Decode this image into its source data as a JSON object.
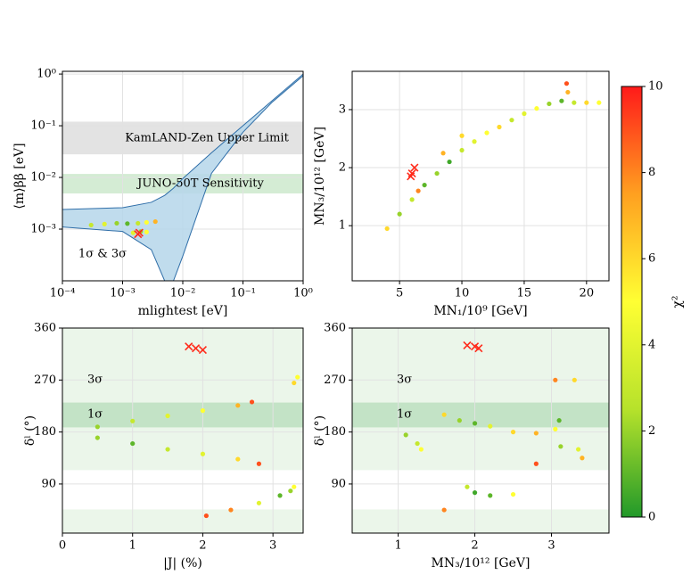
{
  "chart_data": [
    {
      "type": "scatter",
      "xlabel": "mlightest [eV]",
      "ylabel": "⟨m⟩ββ [eV]",
      "xlog": true,
      "ylog": true,
      "grid": true,
      "xlim": [
        0.0001,
        1
      ],
      "ylim": [
        0.0001,
        1.13
      ],
      "xticks": [
        {
          "value": 0.0001,
          "label": "10⁻⁴"
        },
        {
          "value": 0.001,
          "label": "10⁻³"
        },
        {
          "value": 0.01,
          "label": "10⁻²"
        },
        {
          "value": 0.1,
          "label": "10⁻¹"
        },
        {
          "value": 1,
          "label": "10⁰"
        }
      ],
      "yticks": [
        {
          "value": 0.001,
          "label": "10⁻³"
        },
        {
          "value": 0.01,
          "label": "10⁻²"
        },
        {
          "value": 0.1,
          "label": "10⁻¹"
        },
        {
          "value": 1,
          "label": "10⁰"
        }
      ],
      "bands": [
        {
          "label": "KamLAND-Zen Upper Limit",
          "ranges": [
            [
              0.028,
              0.12
            ]
          ],
          "color": "#e3e3e3",
          "text_color": "#6e6e6e"
        },
        {
          "label": "JUNO-50T Sensitivity",
          "ranges": [
            [
              0.0049,
              0.0117
            ]
          ],
          "color": "#d4ecd4",
          "text_color": "#3a9a4a"
        }
      ],
      "region": {
        "x": [
          0.0001,
          0.001,
          0.003,
          0.005,
          0.007,
          0.01,
          0.03,
          0.1,
          0.3,
          1
        ],
        "upper": [
          0.0024,
          0.0026,
          0.0033,
          0.0045,
          0.0062,
          0.0095,
          0.03,
          0.1,
          0.3,
          1
        ],
        "lower": [
          0.0011,
          0.0009,
          0.0004,
          0.0001,
          0.0001,
          0.0003,
          0.012,
          0.075,
          0.28,
          0.93
        ],
        "fill": "#b5d6ea",
        "stroke": "#2f6ea8"
      },
      "annotations": [
        "1σ & 3σ"
      ],
      "series": [
        {
          "marker": "o",
          "x": [
            0.0003,
            0.0005,
            0.0008,
            0.0012,
            0.0018,
            0.0025,
            0.0035,
            0.0015,
            0.002,
            0.0025
          ],
          "y": [
            0.0012,
            0.00125,
            0.0013,
            0.00128,
            0.0013,
            0.00135,
            0.0014,
            0.00085,
            0.0009,
            0.00088
          ],
          "c": [
            3,
            4,
            2,
            1,
            3,
            5,
            7,
            4,
            2,
            5
          ]
        },
        {
          "marker": "x",
          "color": "#ff2a1a",
          "x": [
            0.0018,
            0.0019
          ],
          "y": [
            0.0008,
            0.00085
          ]
        }
      ]
    },
    {
      "type": "scatter",
      "xlabel": "MN₁/10⁹ [GeV]",
      "ylabel": "MN₃/10¹² [GeV]",
      "grid": true,
      "xlim": [
        1.2,
        21.8
      ],
      "ylim": [
        0.05,
        3.66
      ],
      "xticks": [
        5,
        10,
        15,
        20
      ],
      "yticks": [
        1,
        2,
        3
      ],
      "series": [
        {
          "marker": "o",
          "x": [
            4,
            5,
            6,
            7,
            8,
            9,
            10,
            11,
            12,
            13,
            14,
            15,
            16,
            17,
            18,
            18.5,
            18.4,
            19,
            20,
            21,
            6.5,
            8.5,
            10
          ],
          "y": [
            0.95,
            1.2,
            1.45,
            1.7,
            1.9,
            2.1,
            2.3,
            2.45,
            2.6,
            2.7,
            2.82,
            2.93,
            3.02,
            3.1,
            3.15,
            3.3,
            3.45,
            3.12,
            3.12,
            3.12,
            1.6,
            2.25,
            2.55
          ],
          "c": [
            6,
            2,
            3,
            1,
            2,
            0.5,
            3,
            4,
            5,
            6,
            3,
            4,
            5,
            2,
            1,
            7,
            9,
            3,
            6,
            5,
            8,
            7,
            6
          ]
        },
        {
          "marker": "x",
          "color": "#ff2a1a",
          "x": [
            6,
            6.2,
            5.9
          ],
          "y": [
            1.9,
            2.0,
            1.85
          ]
        }
      ]
    },
    {
      "type": "scatter",
      "xlabel": "|J| (%)",
      "ylabel": "δˡ (°)",
      "grid": true,
      "xlim": [
        0,
        3.43
      ],
      "ylim": [
        5,
        360
      ],
      "xticks": [
        0,
        1,
        2,
        3
      ],
      "yticks": [
        90,
        180,
        270,
        360
      ],
      "bands": [
        {
          "label": "3σ",
          "ranges": [
            [
              114,
              360
            ],
            [
              0,
              46
            ]
          ],
          "color": "#ebf6ea",
          "text_color": "#1f6b4a"
        },
        {
          "label": "1σ",
          "ranges": [
            [
              188,
              231
            ]
          ],
          "color": "#c3e3c6",
          "text_color": "#1f6b4a"
        }
      ],
      "series": [
        {
          "marker": "o",
          "x": [
            0.5,
            1,
            1.5,
            2,
            2.5,
            2.7,
            0.5,
            1,
            1.5,
            2,
            2.5,
            2.8,
            3.3,
            3.35,
            2.05,
            2.4,
            2.8,
            3.1,
            3.25,
            3.3
          ],
          "y": [
            189,
            199,
            208,
            217,
            226,
            232,
            170,
            160,
            150,
            142,
            133,
            125,
            265,
            275,
            35,
            45,
            57,
            70,
            78,
            85
          ],
          "c": [
            2,
            3,
            4,
            5,
            7,
            9,
            2,
            1,
            3,
            4,
            6,
            9,
            6,
            5,
            9,
            8,
            4,
            1,
            2,
            5
          ]
        },
        {
          "marker": "x",
          "color": "#ff2a1a",
          "x": [
            1.8,
            1.9,
            2.0
          ],
          "y": [
            328,
            325,
            322
          ]
        }
      ]
    },
    {
      "type": "scatter",
      "xlabel": "MN₃/10¹² [GeV]",
      "ylabel": "δˡ (°)",
      "grid": true,
      "xlim": [
        0.4,
        3.75
      ],
      "ylim": [
        5,
        360
      ],
      "xticks": [
        1,
        2,
        3
      ],
      "yticks": [
        90,
        180,
        270,
        360
      ],
      "bands": [
        {
          "label": "3σ",
          "ranges": [
            [
              114,
              360
            ],
            [
              0,
              46
            ]
          ],
          "color": "#ebf6ea",
          "text_color": "#1f6b4a"
        },
        {
          "label": "1σ",
          "ranges": [
            [
              188,
              231
            ]
          ],
          "color": "#c3e3c6",
          "text_color": "#1f6b4a"
        }
      ],
      "series": [
        {
          "marker": "o",
          "x": [
            1.25,
            1.1,
            1.3,
            1.6,
            1.8,
            2,
            2.2,
            2.5,
            2.8,
            3.05,
            3.1,
            3.12,
            3.35,
            3.4,
            3.05,
            3.3,
            1.9,
            2,
            2.2,
            2.5,
            1.6,
            2.8
          ],
          "y": [
            160,
            175,
            150,
            210,
            200,
            195,
            190,
            180,
            178,
            185,
            200,
            155,
            150,
            135,
            270,
            270,
            85,
            75,
            70,
            72,
            45,
            125
          ],
          "c": [
            3,
            2,
            5,
            6,
            2,
            1,
            4,
            6,
            7,
            5,
            1,
            2,
            4,
            7,
            8,
            6,
            3,
            0.5,
            1,
            5,
            8,
            9
          ]
        },
        {
          "marker": "x",
          "color": "#ff2a1a",
          "x": [
            1.9,
            2.0,
            2.05
          ],
          "y": [
            330,
            328,
            325
          ]
        }
      ]
    },
    {
      "type": "colorbar",
      "label": "χ²",
      "clim": [
        0,
        10
      ],
      "ticks": [
        0,
        2,
        4,
        6,
        8,
        10
      ],
      "colors": [
        "#22992a",
        "#b6e22b",
        "#ffff33",
        "#ffa020",
        "#ff1a1a"
      ]
    }
  ]
}
